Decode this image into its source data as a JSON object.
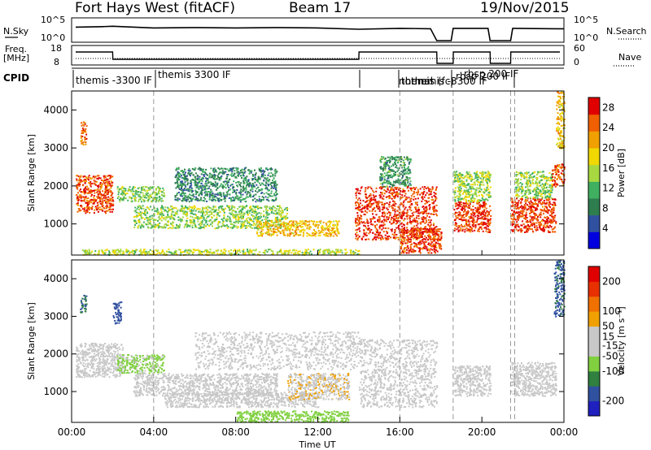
{
  "header": {
    "radar": "Fort Hays West (fitACF)",
    "beam": "Beam 17",
    "date": "19/Nov/2015"
  },
  "top_strip": {
    "left_label": "N.Sky",
    "left_ticks": [
      "10^5",
      "10^0"
    ],
    "right_label": "N.Search",
    "right_ticks": [
      "10^5",
      "10^0"
    ]
  },
  "freq_strip": {
    "left_label_line1": "Freq.",
    "left_label_line2": "[MHz]",
    "left_ticks": [
      "18",
      "8"
    ],
    "right_label": "Nave",
    "right_ticks": [
      "60",
      "0"
    ]
  },
  "cpid": {
    "label": "CPID",
    "entries": [
      "themis -3300 IF",
      "themis 3300 IF",
      "themis (fc)",
      "normal",
      "themis -3300 IF",
      "rbsp 200 IF",
      "rbsp 200 IF"
    ]
  },
  "panels": {
    "power": {
      "ylabel": "Slant Range [km]",
      "colorbar_label": "Power [dB]"
    },
    "velocity": {
      "ylabel": "Slant Range [km]",
      "colorbar_label": "Velocity [m s⁻¹]"
    }
  },
  "xaxis": {
    "label": "Time UT",
    "ticks": [
      "00:00",
      "04:00",
      "08:00",
      "12:00",
      "16:00",
      "20:00",
      "00:00"
    ]
  },
  "colors": {
    "power_scale": [
      "#0000e0",
      "#3050a0",
      "#2e7d4f",
      "#40b060",
      "#a8d840",
      "#f0d800",
      "#f0a000",
      "#f06000",
      "#e00000"
    ],
    "velocity_scale": [
      "#2020c0",
      "#3050a0",
      "#308040",
      "#80d040",
      "#c8c8c8",
      "#c8c8c8",
      "#f0a000",
      "#f07000",
      "#e83000",
      "#e00000"
    ]
  },
  "chart_data": [
    {
      "type": "heatmap",
      "title": "Power",
      "xlabel": "Time UT",
      "ylabel": "Slant Range [km]",
      "xlim": [
        0,
        24
      ],
      "ylim": [
        180,
        4500
      ],
      "yticks": [
        1000,
        2000,
        3000,
        4000
      ],
      "colorbar": {
        "label": "Power [dB]",
        "ticks": [
          4,
          8,
          12,
          16,
          20,
          24,
          28
        ],
        "range": [
          0,
          30
        ]
      },
      "regions": [
        {
          "t0": 0.2,
          "t1": 2.0,
          "r0": 1300,
          "r1": 2300,
          "value": 26
        },
        {
          "t0": 0.4,
          "t1": 0.7,
          "r0": 3100,
          "r1": 3700,
          "value": 24
        },
        {
          "t0": 2.2,
          "t1": 4.5,
          "r0": 1600,
          "r1": 2000,
          "value": 14
        },
        {
          "t0": 3.0,
          "t1": 10.5,
          "r0": 900,
          "r1": 1500,
          "value": 14
        },
        {
          "t0": 5.0,
          "t1": 10.0,
          "r0": 1600,
          "r1": 2500,
          "value": 9
        },
        {
          "t0": 9.0,
          "t1": 13.0,
          "r0": 700,
          "r1": 1100,
          "value": 20
        },
        {
          "t0": 0.5,
          "t1": 14.0,
          "r0": 200,
          "r1": 350,
          "value": 16
        },
        {
          "t0": 13.8,
          "t1": 17.8,
          "r0": 600,
          "r1": 2000,
          "value": 27
        },
        {
          "t0": 16.0,
          "t1": 18.0,
          "r0": 250,
          "r1": 900,
          "value": 26
        },
        {
          "t0": 15.0,
          "t1": 16.5,
          "r0": 2000,
          "r1": 2800,
          "value": 10
        },
        {
          "t0": 18.6,
          "t1": 20.4,
          "r0": 800,
          "r1": 1600,
          "value": 27
        },
        {
          "t0": 18.6,
          "t1": 20.4,
          "r0": 1600,
          "r1": 2400,
          "value": 15
        },
        {
          "t0": 21.4,
          "t1": 23.6,
          "r0": 800,
          "r1": 1700,
          "value": 27
        },
        {
          "t0": 21.6,
          "t1": 23.4,
          "r0": 1700,
          "r1": 2400,
          "value": 14
        },
        {
          "t0": 23.4,
          "t1": 24.0,
          "r0": 2000,
          "r1": 2600,
          "value": 26
        },
        {
          "t0": 23.6,
          "t1": 24.0,
          "r0": 3000,
          "r1": 4500,
          "value": 20
        }
      ]
    },
    {
      "type": "heatmap",
      "title": "Velocity",
      "xlabel": "Time UT",
      "ylabel": "Slant Range [km]",
      "xlim": [
        0,
        24
      ],
      "ylim": [
        180,
        4500
      ],
      "yticks": [
        1000,
        2000,
        3000,
        4000
      ],
      "colorbar": {
        "label": "Velocity [m s⁻¹]",
        "ticks": [
          -200,
          -100,
          -50,
          -15,
          15,
          50,
          100,
          200
        ],
        "range": [
          -250,
          250
        ]
      },
      "regions": [
        {
          "t0": 0.2,
          "t1": 2.5,
          "r0": 1400,
          "r1": 2300,
          "value": 0
        },
        {
          "t0": 0.4,
          "t1": 0.7,
          "r0": 3100,
          "r1": 3600,
          "value": -150
        },
        {
          "t0": 2.0,
          "t1": 2.4,
          "r0": 2800,
          "r1": 3400,
          "value": -180
        },
        {
          "t0": 2.2,
          "t1": 4.5,
          "r0": 1500,
          "r1": 2000,
          "value": -60
        },
        {
          "t0": 3.0,
          "t1": 10.0,
          "r0": 900,
          "r1": 1500,
          "value": 0
        },
        {
          "t0": 4.5,
          "t1": 12.0,
          "r0": 600,
          "r1": 1000,
          "value": 0
        },
        {
          "t0": 8.0,
          "t1": 13.5,
          "r0": 200,
          "r1": 500,
          "value": -70
        },
        {
          "t0": 10.5,
          "t1": 13.5,
          "r0": 800,
          "r1": 1500,
          "value": 40
        },
        {
          "t0": 6.0,
          "t1": 14.0,
          "r0": 1600,
          "r1": 2600,
          "value": 0
        },
        {
          "t0": 14.0,
          "t1": 17.8,
          "r0": 600,
          "r1": 2400,
          "value": 0
        },
        {
          "t0": 18.6,
          "t1": 20.4,
          "r0": 900,
          "r1": 1700,
          "value": 0
        },
        {
          "t0": 21.4,
          "t1": 23.6,
          "r0": 900,
          "r1": 1800,
          "value": 0
        },
        {
          "t0": 23.5,
          "t1": 24.0,
          "r0": 3000,
          "r1": 4500,
          "value": -160
        }
      ]
    },
    {
      "type": "line",
      "title": "N.Sky",
      "series": [
        {
          "x": [
            0.2,
            1.5,
            2.0,
            4.0,
            6.0,
            8.0,
            10.0,
            12.0,
            14.0,
            16.0,
            17.5,
            17.8,
            18.0,
            18.5,
            18.6,
            20.3,
            20.4,
            21.4,
            21.5,
            23.6,
            24.0
          ],
          "y": [
            3.2,
            3.3,
            3.4,
            3.0,
            3.1,
            3.0,
            3.1,
            3.0,
            2.7,
            2.9,
            2.8,
            0.0,
            0.0,
            0.0,
            2.9,
            2.9,
            0.0,
            0.0,
            2.9,
            2.8,
            2.8
          ]
        }
      ]
    },
    {
      "type": "line",
      "title": "Freq./Nave",
      "series": [
        {
          "x": [
            0.2,
            2.0,
            2.01,
            14.0,
            14.01,
            17.8,
            17.81,
            18.6,
            18.61,
            20.4,
            20.41,
            21.4,
            21.41,
            23.8
          ],
          "y": [
            15.0,
            15.0,
            10.5,
            10.5,
            15.0,
            15.0,
            8.0,
            8.0,
            15.0,
            15.0,
            8.0,
            8.0,
            15.0,
            15.0
          ]
        }
      ]
    }
  ]
}
